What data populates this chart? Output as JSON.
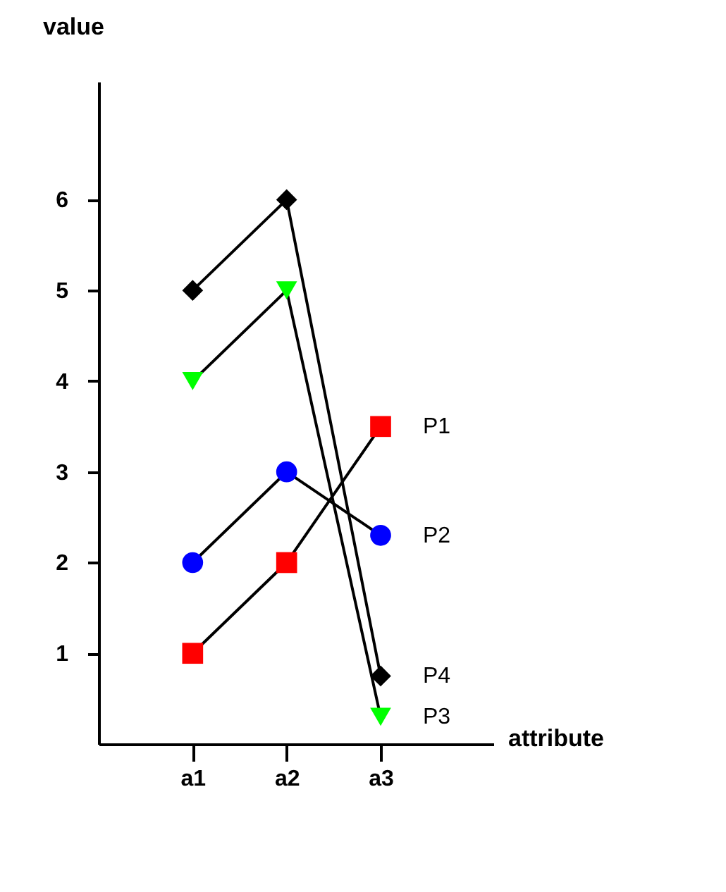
{
  "chart_data": {
    "type": "line",
    "xlabel": "attribute",
    "ylabel": "value",
    "categories": [
      "a1",
      "a2",
      "a3"
    ],
    "series": [
      {
        "name": "P1",
        "color": "#ff0000",
        "marker": "square",
        "values": [
          1,
          2,
          3.5
        ]
      },
      {
        "name": "P2",
        "color": "#0000ff",
        "marker": "circle",
        "values": [
          2,
          3,
          2.3
        ]
      },
      {
        "name": "P3",
        "color": "#00ff00",
        "marker": "triangle-down",
        "values": [
          4,
          5,
          0.3
        ]
      },
      {
        "name": "P4",
        "color": "#000000",
        "marker": "diamond",
        "values": [
          5,
          6,
          0.75
        ]
      }
    ],
    "ylim": [
      0,
      7.3
    ],
    "yticks": [
      1,
      2,
      3,
      4,
      5,
      6
    ],
    "grid": false
  }
}
